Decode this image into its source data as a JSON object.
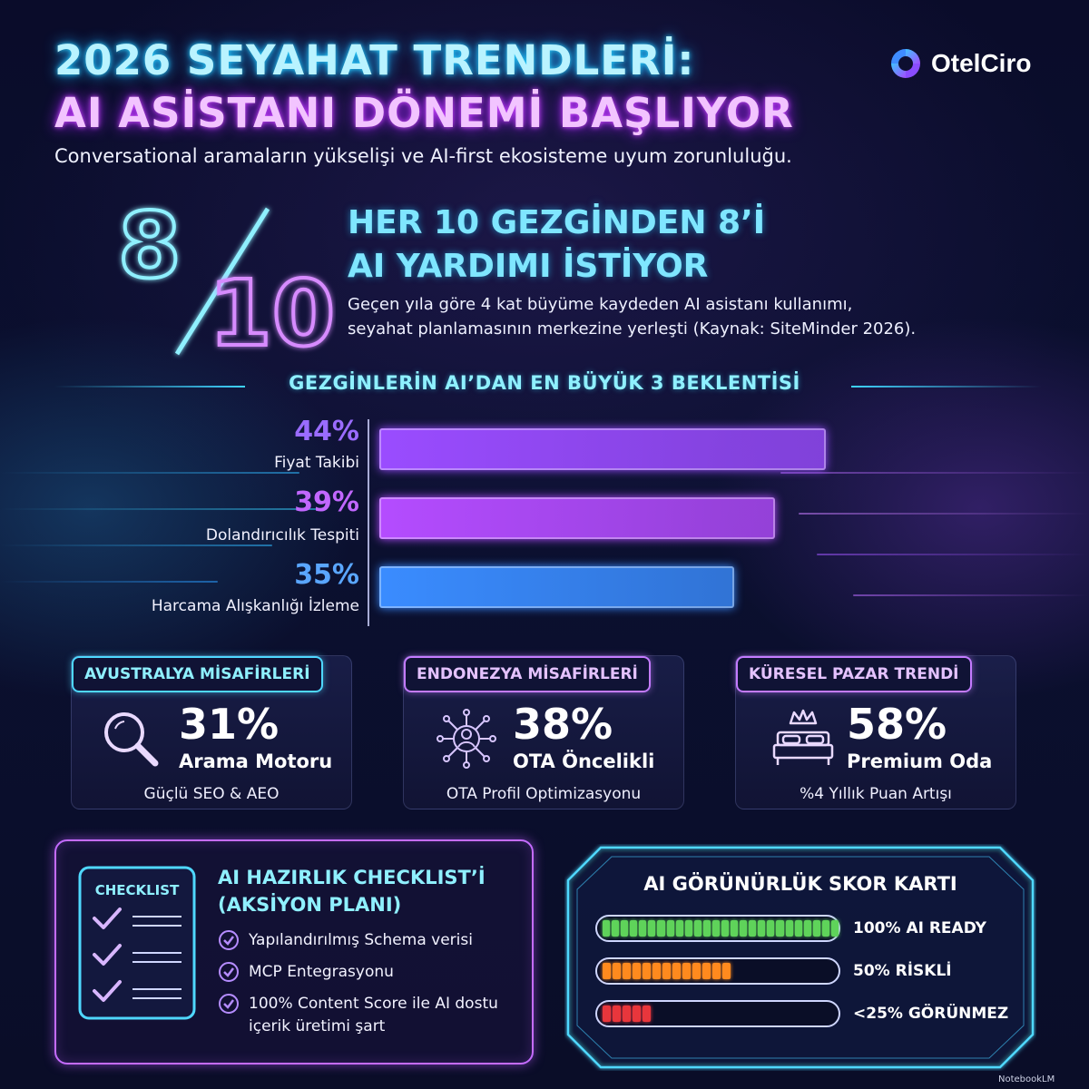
{
  "header": {
    "title_line1": "2026 SEYAHAT TRENDLERİ:",
    "title_line2": "AI ASİSTANI DÖNEMİ BAŞLIYOR",
    "subtitle": "Conversational aramaların yükselişi ve AI-first ekosisteme uyum zorunluluğu.",
    "logo_text": "OtelCiro",
    "logo_icon": "otelciro-logo-icon"
  },
  "hero": {
    "numerator": "8",
    "denominator": "10",
    "title_line1": "HER 10 GEZGİNDEN 8’İ",
    "title_line2": "AI YARDIMI İSTİYOR",
    "desc_line1": "Geçen yıla göre 4 kat büyüme kaydeden AI asistanı kullanımı,",
    "desc_line2": "seyahat planlamasının merkezine yerleşti (Kaynak: SiteMinder 2026)."
  },
  "expectations": {
    "title": "GEZGİNLERİN AI’DAN EN BÜYÜK 3 BEKLENTİSİ",
    "items": [
      {
        "pct": "44%",
        "value": 44,
        "label": "Fiyat Takibi",
        "color": "#9a4cff"
      },
      {
        "pct": "39%",
        "value": 39,
        "label": "Dolandırıcılık Tespiti",
        "color": "#b44cff"
      },
      {
        "pct": "35%",
        "value": 35,
        "label": "Harcama Alışkanlığı İzleme",
        "color": "#3a8cff"
      }
    ]
  },
  "cards": [
    {
      "head": "AVUSTRALYA MİSAFİRLERİ",
      "pct": "31%",
      "label": "Arama Motoru",
      "foot": "Güçlü SEO & AEO",
      "icon": "magnifier-icon",
      "accent": "#4fd8ff"
    },
    {
      "head": "ENDONEZYA MİSAFİRLERİ",
      "pct": "38%",
      "label": "OTA Öncelikli",
      "foot": "OTA Profil Optimizasyonu",
      "icon": "network-user-icon",
      "accent": "#c47bff"
    },
    {
      "head": "KÜRESEL PAZAR TRENDİ",
      "pct": "58%",
      "label": "Premium Oda",
      "foot": "%4 Yıllık Puan Artışı",
      "icon": "crown-bed-icon",
      "accent": "#c47bff"
    }
  ],
  "checklist": {
    "badge": "CHECKLIST",
    "title_line1": "AI HAZIRLIK CHECKLIST’İ",
    "title_line2": "(AKSİYON PLANI)",
    "items": [
      {
        "line1": "Yapılandırılmış Schema verisi",
        "line2": ""
      },
      {
        "line1": "MCP Entegrasyonu",
        "line2": ""
      },
      {
        "line1": "100% Content Score ile AI dostu",
        "line2": "içerik üretimi şart"
      }
    ]
  },
  "scorecard": {
    "title": "AI GÖRÜNÜRLÜK SKOR KARTI",
    "rows": [
      {
        "label": "100% AI READY",
        "fill": 1.0,
        "color": "#5fd35a"
      },
      {
        "label": "50% RİSKLİ",
        "fill": 0.5,
        "color": "#ff8a1e"
      },
      {
        "label": "<25% GÖRÜNMEZ",
        "fill": 0.2,
        "color": "#e8363c"
      }
    ]
  },
  "footer": {
    "brand": "NotebookLM"
  }
}
